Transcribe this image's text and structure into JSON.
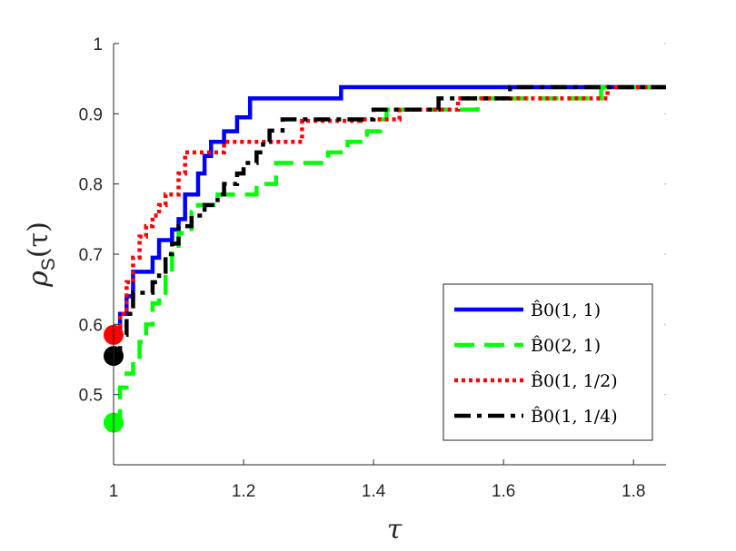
{
  "chart_data": {
    "type": "line",
    "title": "",
    "xlabel": "τ",
    "ylabel": "ρ",
    "ylabel_sub": "S",
    "ylabel_arg": "(τ)",
    "xlim": [
      1,
      1.85
    ],
    "ylim": [
      0.4,
      1.0
    ],
    "x_ticks": [
      1,
      1.2,
      1.4,
      1.6,
      1.8
    ],
    "x_tick_labels": [
      "1",
      "1.2",
      "1.4",
      "1.6",
      "1.8"
    ],
    "y_ticks": [
      0.5,
      0.6,
      0.7,
      0.8,
      0.9,
      1.0
    ],
    "y_tick_labels": [
      "0.5",
      "0.6",
      "0.7",
      "0.8",
      "0.9",
      "1"
    ],
    "grid": false,
    "legend_position": "bottom-right",
    "series": [
      {
        "name": "B̂0(1, 1)",
        "color": "#0000ff",
        "style": "solid",
        "start_marker": [
          1.0,
          0.585
        ],
        "points": [
          [
            1.0,
            0.585
          ],
          [
            1.01,
            0.615
          ],
          [
            1.02,
            0.64
          ],
          [
            1.03,
            0.675
          ],
          [
            1.06,
            0.695
          ],
          [
            1.07,
            0.72
          ],
          [
            1.09,
            0.735
          ],
          [
            1.1,
            0.75
          ],
          [
            1.11,
            0.785
          ],
          [
            1.13,
            0.815
          ],
          [
            1.14,
            0.84
          ],
          [
            1.15,
            0.86
          ],
          [
            1.17,
            0.875
          ],
          [
            1.19,
            0.895
          ],
          [
            1.21,
            0.922
          ],
          [
            1.35,
            0.938
          ],
          [
            1.85,
            0.938
          ]
        ]
      },
      {
        "name": "B̂0(2, 1)",
        "color": "#00ff00",
        "style": "dashed",
        "start_marker": [
          1.0,
          0.46
        ],
        "points": [
          [
            1.0,
            0.46
          ],
          [
            1.01,
            0.51
          ],
          [
            1.02,
            0.53
          ],
          [
            1.03,
            0.55
          ],
          [
            1.04,
            0.575
          ],
          [
            1.05,
            0.6
          ],
          [
            1.06,
            0.63
          ],
          [
            1.07,
            0.645
          ],
          [
            1.08,
            0.675
          ],
          [
            1.09,
            0.705
          ],
          [
            1.1,
            0.73
          ],
          [
            1.12,
            0.76
          ],
          [
            1.13,
            0.77
          ],
          [
            1.16,
            0.785
          ],
          [
            1.22,
            0.8
          ],
          [
            1.25,
            0.83
          ],
          [
            1.33,
            0.845
          ],
          [
            1.36,
            0.86
          ],
          [
            1.39,
            0.875
          ],
          [
            1.41,
            0.892
          ],
          [
            1.42,
            0.906
          ],
          [
            1.56,
            0.922
          ],
          [
            1.75,
            0.938
          ],
          [
            1.85,
            0.938
          ]
        ]
      },
      {
        "name": "B̂0(1, 1/2)",
        "color": "#ff0000",
        "style": "dotted",
        "start_marker": [
          1.0,
          0.585
        ],
        "points": [
          [
            1.0,
            0.585
          ],
          [
            1.01,
            0.615
          ],
          [
            1.02,
            0.66
          ],
          [
            1.03,
            0.695
          ],
          [
            1.04,
            0.725
          ],
          [
            1.05,
            0.74
          ],
          [
            1.06,
            0.755
          ],
          [
            1.07,
            0.77
          ],
          [
            1.08,
            0.785
          ],
          [
            1.1,
            0.815
          ],
          [
            1.11,
            0.845
          ],
          [
            1.17,
            0.86
          ],
          [
            1.26,
            0.86
          ],
          [
            1.29,
            0.876
          ],
          [
            1.29,
            0.89
          ],
          [
            1.38,
            0.892
          ],
          [
            1.44,
            0.906
          ],
          [
            1.53,
            0.922
          ],
          [
            1.76,
            0.938
          ],
          [
            1.85,
            0.938
          ]
        ]
      },
      {
        "name": "B̂0(1, 1/4)",
        "color": "#000000",
        "style": "dashdot",
        "start_marker": [
          1.0,
          0.555
        ],
        "points": [
          [
            1.0,
            0.555
          ],
          [
            1.01,
            0.585
          ],
          [
            1.02,
            0.615
          ],
          [
            1.03,
            0.645
          ],
          [
            1.06,
            0.66
          ],
          [
            1.07,
            0.675
          ],
          [
            1.08,
            0.7
          ],
          [
            1.09,
            0.715
          ],
          [
            1.1,
            0.74
          ],
          [
            1.12,
            0.755
          ],
          [
            1.14,
            0.77
          ],
          [
            1.16,
            0.785
          ],
          [
            1.17,
            0.8
          ],
          [
            1.19,
            0.815
          ],
          [
            1.2,
            0.83
          ],
          [
            1.22,
            0.845
          ],
          [
            1.23,
            0.86
          ],
          [
            1.24,
            0.876
          ],
          [
            1.26,
            0.892
          ],
          [
            1.33,
            0.892
          ],
          [
            1.4,
            0.906
          ],
          [
            1.5,
            0.922
          ],
          [
            1.61,
            0.938
          ],
          [
            1.85,
            0.938
          ]
        ]
      }
    ]
  }
}
